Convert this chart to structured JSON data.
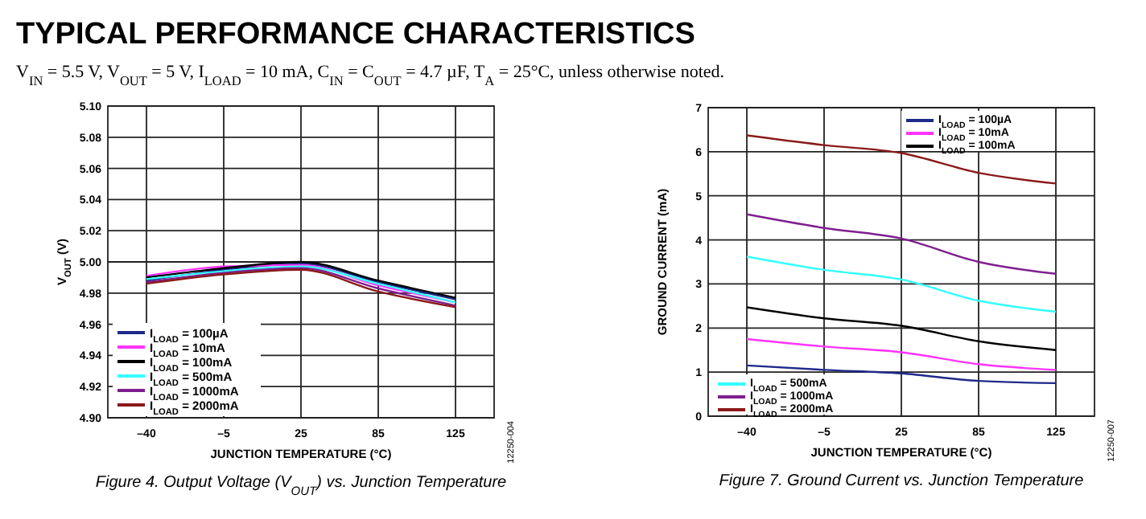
{
  "chart_data": [
    {
      "type": "line",
      "title": "TYPICAL PERFORMANCE CHARACTERISTICS",
      "subtitle": "V$_{IN}$ = 5.5 V, V$_{OUT}$ = 5 V, I$_{LOAD}$ = 10 mA, C$_{IN}$ = C$_{OUT}$ = 4.7 µF, T$_{A}$ = 25°C, unless otherwise noted.",
      "xlabel": "JUNCTION TEMPERATURE (°C)",
      "ylabel": "V$_{OUT}$ (V)",
      "categories": [
        "–40",
        "–5",
        "25",
        "85",
        "125"
      ],
      "ylim": [
        4.9,
        5.1
      ],
      "yticks": [
        {
          "value": 4.9,
          "label": "4.90"
        },
        4.92,
        4.94,
        4.96,
        4.98,
        {
          "value": 5.0,
          "label": "5.00"
        },
        5.02,
        5.04,
        5.06,
        5.08,
        {
          "value": 5.1,
          "label": "5.10"
        }
      ],
      "grid": true,
      "legend": "bottom left",
      "marker": "none",
      "line_style": "solid",
      "annotations": [
        "Figure 4. Output Voltage (V$_{OUT}$) vs. Junction Temperature",
        "12250-004"
      ],
      "series": [
        {
          "name": "I$_{LOAD}$ = 100µA",
          "color": "#1f2a8a",
          "values": [
            4.988,
            4.995,
            4.999,
            4.987,
            4.976
          ]
        },
        {
          "name": "I$_{LOAD}$ = 10mA",
          "color": "#ff33ff",
          "values": [
            4.991,
            4.997,
            4.998,
            4.985,
            4.974
          ]
        },
        {
          "name": "I$_{LOAD}$ = 100mA",
          "color": "#000000",
          "values": [
            4.99,
            4.996,
            5.0,
            4.988,
            4.977
          ]
        },
        {
          "name": "I$_{LOAD}$ = 500mA",
          "color": "#33ffff",
          "values": [
            4.989,
            4.994,
            4.997,
            4.986,
            4.974
          ]
        },
        {
          "name": "I$_{LOAD}$ = 1000mA",
          "color": "#7f1f8f",
          "values": [
            4.987,
            4.993,
            4.996,
            4.983,
            4.972
          ]
        },
        {
          "name": "I$_{LOAD}$ = 2000mA",
          "color": "#8b1a1a",
          "values": [
            4.986,
            4.992,
            4.995,
            4.981,
            4.971
          ]
        }
      ]
    },
    {
      "type": "line",
      "xlabel": "JUNCTION TEMPERATURE (°C)",
      "ylabel": "GROUND CURRENT (mA)",
      "categories": [
        "–40",
        "–5",
        "25",
        "85",
        "125"
      ],
      "ylim": [
        0,
        7
      ],
      "yticks": [
        0,
        1,
        2,
        3,
        4,
        5,
        6,
        7
      ],
      "grid": true,
      "legend": "bottom left",
      "marker": "none",
      "line_style": "solid",
      "annotations": [
        "Figure 7. Ground Current vs. Junction Temperature",
        "12250-007"
      ],
      "series": [
        {
          "name": "I$_{LOAD}$ = 100µA",
          "color": "#1f2a8a",
          "values": [
            1.15,
            1.05,
            0.97,
            0.8,
            0.75
          ]
        },
        {
          "name": "I$_{LOAD}$ = 10mA",
          "color": "#ff33ff",
          "values": [
            1.75,
            1.58,
            1.45,
            1.18,
            1.05
          ]
        },
        {
          "name": "I$_{LOAD}$ = 100mA",
          "color": "#000000",
          "values": [
            2.47,
            2.22,
            2.05,
            1.7,
            1.5
          ]
        },
        {
          "name": "I$_{LOAD}$ = 500mA",
          "color": "#33ffff",
          "values": [
            3.62,
            3.32,
            3.1,
            2.62,
            2.37
          ]
        },
        {
          "name": "I$_{LOAD}$ = 1000mA",
          "color": "#7f1f8f",
          "values": [
            4.58,
            4.27,
            4.03,
            3.5,
            3.23
          ]
        },
        {
          "name": "I$_{LOAD}$ = 2000mA",
          "color": "#8b1a1a",
          "values": [
            6.37,
            6.15,
            5.97,
            5.52,
            5.28
          ]
        }
      ]
    }
  ]
}
